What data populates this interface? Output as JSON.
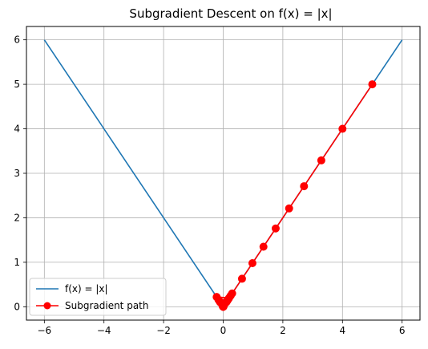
{
  "chart_data": {
    "type": "line",
    "title": "Subgradient Descent on f(x) = |x|",
    "xlabel": "",
    "ylabel": "",
    "xlim": [
      -6.6,
      6.6
    ],
    "ylim": [
      -0.3,
      6.3
    ],
    "xticks": [
      -6,
      -4,
      -2,
      0,
      2,
      4,
      6
    ],
    "xtick_labels": [
      "−6",
      "−4",
      "−2",
      "0",
      "2",
      "4",
      "6"
    ],
    "yticks": [
      0,
      1,
      2,
      3,
      4,
      5,
      6
    ],
    "ytick_labels": [
      "0",
      "1",
      "2",
      "3",
      "4",
      "5",
      "6"
    ],
    "grid": true,
    "legend_position": "lower-left",
    "series": [
      {
        "name": "f(x) = |x|",
        "color": "#1f77b4",
        "marker": "none",
        "x": [
          -6,
          0,
          6
        ],
        "y": [
          6,
          0,
          6
        ]
      },
      {
        "name": "Subgradient path",
        "color": "#ff0000",
        "marker": "circle",
        "x": [
          5.0,
          4.0,
          3.29,
          2.71,
          2.21,
          1.76,
          1.35,
          0.98,
          0.63,
          0.3,
          -0.02,
          0.25,
          0.02,
          -0.22,
          0.2,
          -0.02,
          0.18,
          0.01,
          -0.16,
          0.15,
          -0.01,
          0.14,
          0.0,
          -0.13,
          0.12,
          0.0,
          0.11,
          0.0,
          -0.1,
          0.1,
          0.0
        ],
        "y": [
          5.0,
          4.0,
          3.29,
          2.71,
          2.21,
          1.76,
          1.35,
          0.98,
          0.63,
          0.3,
          0.02,
          0.25,
          0.02,
          0.22,
          0.2,
          0.02,
          0.18,
          0.01,
          0.16,
          0.15,
          0.01,
          0.14,
          0.0,
          0.13,
          0.12,
          0.0,
          0.11,
          0.0,
          0.1,
          0.1,
          0.0
        ]
      }
    ]
  }
}
